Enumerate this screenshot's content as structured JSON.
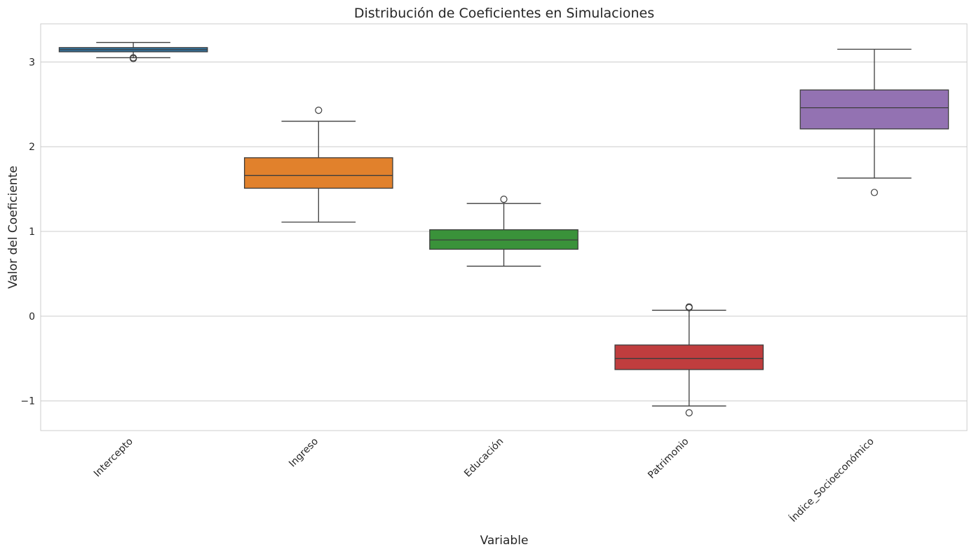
{
  "chart_data": {
    "type": "box",
    "title": "Distribución de Coeficientes en Simulaciones",
    "xlabel": "Variable",
    "ylabel": "Valor del Coeficiente",
    "ylim": [
      -1.35,
      3.45
    ],
    "yticks": [
      -1,
      0,
      1,
      2,
      3
    ],
    "ytick_labels": [
      "−1",
      "0",
      "1",
      "2",
      "3"
    ],
    "grid": true,
    "categories": [
      "Intercepto",
      "Ingreso",
      "Educación",
      "Patrimonio",
      "Índice_Socioeconómico"
    ],
    "colors": [
      "#3274a1",
      "#e1812c",
      "#3a923a",
      "#c03d3e",
      "#9372b2"
    ],
    "boxes": [
      {
        "name": "Intercepto",
        "whisker_low": 3.05,
        "q1": 3.12,
        "median": 3.145,
        "q3": 3.17,
        "whisker_high": 3.23,
        "outliers": [
          3.04,
          3.05
        ]
      },
      {
        "name": "Ingreso",
        "whisker_low": 1.11,
        "q1": 1.51,
        "median": 1.66,
        "q3": 1.87,
        "whisker_high": 2.3,
        "outliers": [
          2.43
        ]
      },
      {
        "name": "Educación",
        "whisker_low": 0.59,
        "q1": 0.79,
        "median": 0.9,
        "q3": 1.02,
        "whisker_high": 1.33,
        "outliers": [
          1.38
        ]
      },
      {
        "name": "Patrimonio",
        "whisker_low": -1.06,
        "q1": -0.63,
        "median": -0.5,
        "q3": -0.34,
        "whisker_high": 0.07,
        "outliers": [
          0.1,
          0.11,
          -1.14
        ]
      },
      {
        "name": "Índice_Socioeconómico",
        "whisker_low": 1.63,
        "q1": 2.21,
        "median": 2.46,
        "q3": 2.67,
        "whisker_high": 3.15,
        "outliers": [
          1.46
        ]
      }
    ]
  }
}
